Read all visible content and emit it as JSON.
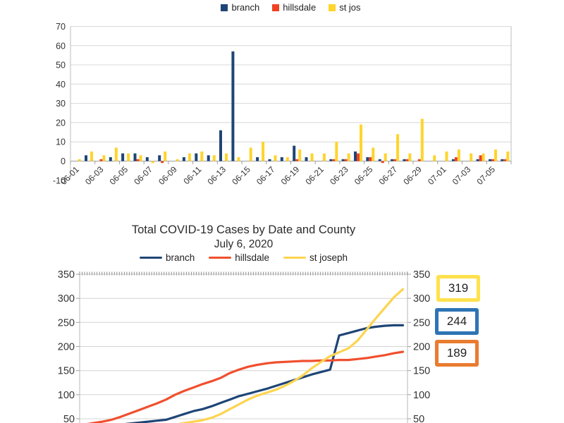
{
  "chart_data": [
    {
      "type": "bar",
      "name": "daily-cases-by-county",
      "ylim": [
        -10,
        70
      ],
      "yticks": [
        -10,
        0,
        10,
        20,
        30,
        40,
        50,
        60,
        70
      ],
      "grid": true,
      "legend_position": "top",
      "label_every": 2,
      "categories": [
        "06-01",
        "06-02",
        "06-03",
        "06-04",
        "06-05",
        "06-06",
        "06-07",
        "06-08",
        "06-09",
        "06-10",
        "06-11",
        "06-12",
        "06-13",
        "06-14",
        "06-15",
        "06-16",
        "06-17",
        "06-18",
        "06-19",
        "06-20",
        "06-21",
        "06-22",
        "06-23",
        "06-24",
        "06-25",
        "06-26",
        "06-27",
        "06-28",
        "06-29",
        "06-30",
        "07-01",
        "07-02",
        "07-03",
        "07-04",
        "07-05",
        "07-06"
      ],
      "series": [
        {
          "name": "branch",
          "color": "#1f4576",
          "values": [
            0,
            3,
            0,
            2,
            4,
            4,
            2,
            3,
            0,
            2,
            4,
            3,
            16,
            57,
            0,
            2,
            1,
            2,
            8,
            2,
            0,
            1,
            1,
            5,
            2,
            1,
            1,
            1,
            0,
            0,
            0,
            1,
            0,
            1,
            1,
            1
          ]
        },
        {
          "name": "hillsdale",
          "color": "#ee4323",
          "values": [
            0,
            0,
            1,
            0,
            0,
            1,
            0,
            -1,
            0,
            0,
            0,
            0,
            0,
            0,
            0,
            0,
            0,
            0,
            1,
            0,
            0,
            1,
            1,
            4,
            2,
            -1,
            1,
            1,
            1,
            0,
            0,
            2,
            0,
            3,
            1,
            1
          ]
        },
        {
          "name": "st jos",
          "color": "#fed42d",
          "values": [
            1,
            5,
            3,
            7,
            4,
            3,
            -1,
            5,
            1,
            4,
            5,
            3,
            4,
            2,
            7,
            10,
            3,
            2,
            6,
            4,
            4,
            10,
            4,
            19,
            7,
            4,
            14,
            4,
            22,
            3,
            5,
            6,
            4,
            4,
            6,
            5
          ]
        }
      ]
    },
    {
      "type": "line",
      "name": "total-cases-by-county",
      "title": "Total COVID-19 Cases by Date and County",
      "subtitle": "July 6, 2020",
      "ylim_visible": [
        50,
        350
      ],
      "yticks": [
        50,
        100,
        150,
        200,
        250,
        300,
        350
      ],
      "grid": true,
      "legend_position": "top",
      "x_range": [
        "06-01",
        "07-06"
      ],
      "series": [
        {
          "name": "branch",
          "color": "#1f4576",
          "values": [
            30,
            32,
            34,
            36,
            38,
            40,
            42,
            44,
            46,
            48,
            54,
            60,
            66,
            70,
            76,
            83,
            90,
            97,
            102,
            107,
            112,
            118,
            124,
            130,
            136,
            142,
            147,
            152,
            223,
            228,
            233,
            238,
            241,
            243,
            244,
            244
          ]
        },
        {
          "name": "hillsdale",
          "color": "#f04f2e",
          "values": [
            38,
            41,
            44,
            48,
            54,
            61,
            68,
            75,
            82,
            90,
            100,
            108,
            115,
            122,
            128,
            135,
            145,
            152,
            158,
            162,
            165,
            167,
            168,
            169,
            170,
            170,
            171,
            171,
            172,
            172,
            174,
            176,
            179,
            182,
            186,
            189
          ]
        },
        {
          "name": "st joseph",
          "color": "#fdd44f",
          "values": [
            18,
            20,
            22,
            24,
            26,
            28,
            30,
            32,
            34,
            36,
            38,
            41,
            44,
            47,
            52,
            60,
            70,
            80,
            90,
            98,
            104,
            110,
            118,
            128,
            140,
            155,
            168,
            180,
            188,
            196,
            212,
            235,
            258,
            280,
            302,
            319
          ]
        }
      ],
      "callouts": [
        {
          "label": "319",
          "color": "#ffe14d",
          "series": "st joseph"
        },
        {
          "label": "244",
          "color": "#2e74b5",
          "series": "branch"
        },
        {
          "label": "189",
          "color": "#e97c30",
          "series": "hillsdale"
        }
      ]
    }
  ]
}
